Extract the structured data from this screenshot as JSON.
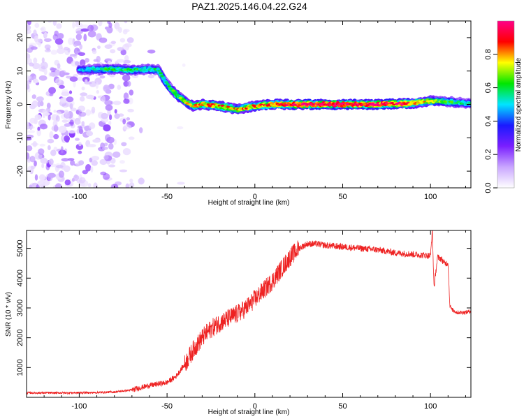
{
  "title": "PAZ1.2025.146.04.22.G24",
  "chart_data": [
    {
      "type": "heatmap",
      "xlabel": "Height of straight line (km)",
      "ylabel": "Frequency (Hz)",
      "xlim": [
        -130,
        123
      ],
      "ylim": [
        -25,
        25
      ],
      "x_ticks": [
        -100,
        -50,
        0,
        50,
        100
      ],
      "y_ticks": [
        -20,
        -10,
        0,
        10,
        20
      ],
      "colorbar": {
        "label": "Normalized spectral amplitude",
        "range": [
          0,
          1
        ],
        "ticks": [
          0.0,
          0.2,
          0.4,
          0.6,
          0.8
        ],
        "colormap": [
          "#ffffff",
          "#c9a6ff",
          "#7a1fff",
          "#1a1aff",
          "#00e5ff",
          "#00e600",
          "#ffff00",
          "#ff0000",
          "#ff0088"
        ]
      },
      "frequency_track": {
        "x": [
          -100,
          -90,
          -80,
          -70,
          -60,
          -55,
          -50,
          -45,
          -40,
          -35,
          -30,
          -20,
          -10,
          0,
          10,
          20,
          30,
          50,
          70,
          90,
          100,
          110,
          123
        ],
        "y": [
          10.5,
          10.5,
          10.5,
          10.3,
          10.5,
          10.3,
          6,
          3,
          1,
          -0.5,
          0,
          -0.5,
          -1.5,
          -0.5,
          0,
          0,
          0,
          0,
          0,
          0.3,
          1,
          0.8,
          0.3
        ],
        "peak_amplitude": [
          0.45,
          0.55,
          0.6,
          0.6,
          0.55,
          0.55,
          0.55,
          0.65,
          0.7,
          0.75,
          0.8,
          0.8,
          0.75,
          0.8,
          0.85,
          0.9,
          0.95,
          0.95,
          0.95,
          0.85,
          0.7,
          0.6,
          0.5
        ]
      },
      "noise_region_x": [
        -130,
        -70
      ]
    },
    {
      "type": "line",
      "xlabel": "Height of straight line (km)",
      "ylabel": "SNR (10 * v/v)",
      "xlim": [
        -130,
        123
      ],
      "ylim": [
        0,
        5600
      ],
      "x_ticks": [
        -100,
        -50,
        0,
        50,
        100
      ],
      "y_ticks": [
        1000,
        2000,
        3000,
        4000,
        5000
      ],
      "series": [
        {
          "color": "#ee2222",
          "x": [
            -130,
            -110,
            -90,
            -80,
            -70,
            -60,
            -55,
            -50,
            -45,
            -40,
            -35,
            -30,
            -25,
            -20,
            -15,
            -10,
            -5,
            0,
            5,
            10,
            15,
            20,
            25,
            30,
            35,
            40,
            50,
            60,
            70,
            80,
            90,
            100,
            101,
            102,
            104,
            106,
            108,
            110,
            111,
            112,
            115,
            120,
            123
          ],
          "y": [
            150,
            150,
            160,
            180,
            250,
            400,
            450,
            500,
            700,
            1100,
            1600,
            2000,
            2300,
            2500,
            2650,
            2800,
            3000,
            3300,
            3600,
            3900,
            4300,
            4700,
            5000,
            5150,
            5150,
            5100,
            5050,
            5000,
            4950,
            4850,
            4800,
            4750,
            5600,
            3700,
            4700,
            4650,
            4500,
            4500,
            3100,
            2950,
            2850,
            2850,
            2900
          ]
        }
      ]
    }
  ]
}
